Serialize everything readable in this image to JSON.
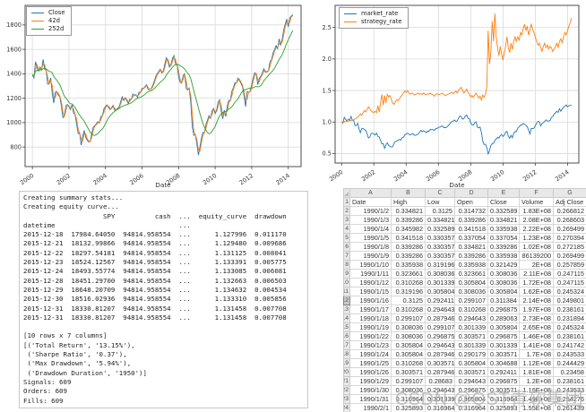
{
  "watermark": "CSDN @QST青软集团",
  "chart_data": [
    {
      "type": "line",
      "title": "",
      "xlabel": "Date",
      "ylabel": "",
      "x_start": 2000.0,
      "x_step_per_year": 12,
      "xlim": [
        1999.6,
        2014.7
      ],
      "ylim": [
        640,
        1960
      ],
      "xticks": [
        2000,
        2002,
        2004,
        2006,
        2008,
        2010,
        2012,
        2014
      ],
      "yticks": [
        800,
        1000,
        1200,
        1400,
        1600,
        1800
      ],
      "ytick_decimals": 0,
      "grid": true,
      "legend_position": "upper-left",
      "series": [
        {
          "name": "Close",
          "color": "#1f77b4",
          "values": [
            1394,
            1366,
            1499,
            1452,
            1421,
            1455,
            1431,
            1518,
            1437,
            1429,
            1315,
            1320,
            1366,
            1240,
            1160,
            1249,
            1256,
            1224,
            1211,
            1134,
            1041,
            1060,
            1139,
            1148,
            1130,
            1107,
            1147,
            1077,
            1067,
            990,
            911,
            916,
            815,
            886,
            936,
            880,
            856,
            841,
            848,
            917,
            964,
            975,
            990,
            1008,
            996,
            1051,
            1058,
            1112,
            1131,
            1145,
            1126,
            1107,
            1121,
            1141,
            1102,
            1104,
            1115,
            1130,
            1174,
            1212,
            1181,
            1204,
            1181,
            1157,
            1192,
            1191,
            1234,
            1220,
            1229,
            1207,
            1249,
            1248,
            1280,
            1281,
            1295,
            1311,
            1270,
            1270,
            1277,
            1304,
            1336,
            1378,
            1401,
            1418,
            1438,
            1407,
            1421,
            1482,
            1531,
            1503,
            1455,
            1474,
            1527,
            1549,
            1481,
            1468,
            1379,
            1331,
            1323,
            1386,
            1400,
            1280,
            1267,
            1283,
            1166,
            969,
            896,
            903,
            826,
            735,
            798,
            873,
            919,
            919,
            987,
            1021,
            1057,
            1036,
            1096,
            1115,
            1074,
            1104,
            1169,
            1187,
            1089,
            1031,
            1102,
            1049,
            1141,
            1183,
            1181,
            1258,
            1286,
            1327,
            1326,
            1364,
            1345,
            1321,
            1292,
            1219,
            1131,
            1253,
            1247,
            1258,
            1312,
            1366,
            1408,
            1398,
            1310,
            1362,
            1379,
            1407,
            1441,
            1412,
            1416,
            1426,
            1498,
            1515,
            1569,
            1598,
            1631,
            1606,
            1686,
            1633,
            1682,
            1757,
            1806,
            1848,
            1783,
            1859,
            1872,
            1884
          ]
        },
        {
          "name": "42d",
          "color": "#ff7f0e",
          "ma_of": 0,
          "window": 2
        },
        {
          "name": "252d",
          "color": "#2ca02c",
          "ma_of": 0,
          "window": 12
        }
      ]
    },
    {
      "type": "line",
      "title": "",
      "xlabel": "Date",
      "ylabel": "",
      "x_start": 2000.0,
      "x_step_per_year": 12,
      "xlim": [
        1999.6,
        2014.7
      ],
      "ylim": [
        0.35,
        2.85
      ],
      "xticks": [
        2000,
        2002,
        2004,
        2006,
        2008,
        2010,
        2012,
        2014
      ],
      "yticks": [
        0.5,
        1.0,
        1.5,
        2.0,
        2.5
      ],
      "ytick_decimals": 1,
      "grid": true,
      "legend_position": "upper-left",
      "series": [
        {
          "name": "market_rate",
          "color": "#1f77b4",
          "values": [
            1.0,
            0.98,
            1.075,
            1.042,
            1.019,
            1.044,
            1.027,
            1.089,
            1.031,
            1.025,
            0.943,
            0.947,
            0.98,
            0.889,
            0.832,
            0.896,
            0.901,
            0.878,
            0.869,
            0.813,
            0.747,
            0.76,
            0.817,
            0.823,
            0.811,
            0.794,
            0.823,
            0.773,
            0.765,
            0.71,
            0.654,
            0.657,
            0.585,
            0.636,
            0.671,
            0.631,
            0.614,
            0.603,
            0.608,
            0.658,
            0.691,
            0.699,
            0.71,
            0.723,
            0.714,
            0.754,
            0.759,
            0.798,
            0.811,
            0.821,
            0.808,
            0.794,
            0.804,
            0.818,
            0.79,
            0.792,
            0.8,
            0.81,
            0.842,
            0.869,
            0.847,
            0.864,
            0.847,
            0.83,
            0.855,
            0.854,
            0.885,
            0.875,
            0.881,
            0.866,
            0.896,
            0.895,
            0.918,
            0.919,
            0.929,
            0.94,
            0.911,
            0.911,
            0.916,
            0.935,
            0.958,
            0.988,
            1.005,
            1.017,
            1.032,
            1.009,
            1.019,
            1.063,
            1.098,
            1.078,
            1.044,
            1.057,
            1.095,
            1.111,
            1.062,
            1.053,
            0.989,
            0.955,
            0.949,
            0.994,
            1.004,
            0.918,
            0.909,
            0.92,
            0.836,
            0.695,
            0.643,
            0.648,
            0.593,
            0.495,
            0.545,
            0.626,
            0.659,
            0.659,
            0.708,
            0.732,
            0.758,
            0.743,
            0.786,
            0.8,
            0.77,
            0.792,
            0.839,
            0.851,
            0.781,
            0.74,
            0.79,
            0.752,
            0.818,
            0.849,
            0.847,
            0.902,
            0.922,
            0.952,
            0.951,
            0.978,
            0.965,
            0.948,
            0.927,
            0.874,
            0.811,
            0.899,
            0.894,
            0.902,
            0.941,
            0.98,
            1.01,
            1.003,
            0.94,
            0.977,
            0.989,
            1.009,
            1.034,
            1.013,
            1.016,
            1.023,
            1.074,
            1.087,
            1.125,
            1.146,
            1.17,
            1.152,
            1.209,
            1.171,
            1.206,
            1.23,
            1.25,
            1.27,
            1.24,
            1.26,
            1.262,
            1.27
          ]
        },
        {
          "name": "strategy_rate",
          "color": "#ff7f0e",
          "values": [
            1.0,
            0.99,
            1.01,
            1.0,
            1.02,
            1.01,
            1.03,
            1.02,
            1.04,
            1.03,
            1.05,
            1.06,
            1.08,
            1.1,
            1.13,
            1.11,
            1.15,
            1.18,
            1.16,
            1.2,
            1.24,
            1.21,
            1.18,
            1.16,
            1.15,
            1.17,
            1.15,
            1.26,
            1.16,
            1.3,
            1.44,
            1.27,
            1.42,
            1.3,
            1.44,
            1.4,
            1.42,
            1.36,
            1.3,
            1.28,
            1.32,
            1.35,
            1.34,
            1.37,
            1.4,
            1.43,
            1.46,
            1.49,
            1.47,
            1.5,
            1.46,
            1.44,
            1.46,
            1.45,
            1.43,
            1.44,
            1.45,
            1.46,
            1.44,
            1.45,
            1.44,
            1.46,
            1.44,
            1.43,
            1.45,
            1.44,
            1.46,
            1.44,
            1.43,
            1.41,
            1.44,
            1.45,
            1.43,
            1.44,
            1.45,
            1.46,
            1.44,
            1.42,
            1.43,
            1.44,
            1.45,
            1.46,
            1.47,
            1.45,
            1.47,
            1.49,
            1.46,
            1.5,
            1.53,
            1.55,
            1.5,
            1.46,
            1.49,
            1.52,
            1.47,
            1.44,
            1.4,
            1.42,
            1.39,
            1.43,
            1.46,
            1.42,
            1.38,
            1.41,
            1.35,
            1.43,
            1.39,
            1.44,
            1.55,
            2.45,
            1.92,
            2.1,
            2.6,
            2.28,
            2.72,
            2.35,
            2.18,
            2.05,
            2.2,
            2.08,
            1.98,
            2.1,
            2.2,
            2.35,
            2.18,
            2.1,
            2.25,
            2.15,
            2.28,
            2.35,
            2.28,
            2.35,
            2.3,
            2.42,
            2.38,
            2.48,
            2.55,
            2.45,
            2.52,
            2.38,
            2.46,
            2.55,
            2.48,
            2.42,
            2.35,
            2.28,
            2.22,
            2.25,
            2.18,
            2.12,
            2.2,
            2.25,
            2.18,
            2.22,
            2.16,
            2.2,
            2.18,
            2.12,
            2.15,
            2.2,
            2.25,
            2.18,
            2.28,
            2.32,
            2.26,
            2.35,
            2.42,
            2.38,
            2.45,
            2.52,
            2.58,
            2.65
          ]
        }
      ]
    }
  ],
  "console": {
    "lines": [
      "Creating summary stats...",
      "Creating equity curve...",
      "                    SPY          cash  ...  equity_curve  drawdown",
      "datetime                               ...",
      "2015-12-18  17984.64050  94814.958554  ...      1.127996  0.011170",
      "2015-12-21  18132.99866  94814.958554  ...      1.129480  0.009686",
      "2015-12-22  18297.54181  94814.958554  ...      1.131125  0.008041",
      "2015-12-23  18524.12567  94814.958554  ...      1.133391  0.005775",
      "2015-12-24  18493.55774  94814.958554  ...      1.133085  0.006081",
      "2015-12-28  18451.29700  94814.958554  ...      1.132663  0.006503",
      "2015-12-29  18648.20709  94814.958554  ...      1.134632  0.004534",
      "2015-12-30  18516.02936  94814.958554  ...      1.133310  0.005856",
      "2015-12-31  18330.81207  94814.958554  ...      1.131458  0.007708",
      "2015-12-31  18330.81207  94814.958554  ...      1.131458  0.007708",
      "",
      "[10 rows x 7 columns]",
      "[('Total Return', '13.15%'),",
      " ('Sharpe Ratio', '0.37'),",
      " ('Max Drawdown', '5.94%'),",
      " ('Drawdown Duration', '1950')]",
      "Signals: 609",
      "Orders: 609",
      "Fills: 609"
    ]
  },
  "spreadsheet": {
    "column_letters": [
      "A",
      "B",
      "C",
      "D",
      "E",
      "F",
      "G"
    ],
    "fields": [
      "Date",
      "High",
      "Low",
      "Open",
      "Close",
      "Volume",
      "Adj Close"
    ],
    "selected_row": 12,
    "rows": [
      [
        "1990/1/2",
        "0.334821",
        "0.3125",
        "0.314732",
        "0.332589",
        "1.83E+08",
        "0.266812"
      ],
      [
        "1990/1/3",
        "0.339286",
        "0.334821",
        "0.339286",
        "0.334821",
        "2.08E+08",
        "0.268603"
      ],
      [
        "1990/1/4",
        "0.345982",
        "0.332589",
        "0.341518",
        "0.335938",
        "2.22E+08",
        "0.269499"
      ],
      [
        "1990/1/5",
        "0.341518",
        "0.330357",
        "0.337054",
        "0.337054",
        "1.23E+08",
        "0.270394"
      ],
      [
        "1990/1/8",
        "0.339286",
        "0.330357",
        "0.334821",
        "0.339286",
        "1.02E+08",
        "0.272185"
      ],
      [
        "1990/1/9",
        "0.339286",
        "0.330357",
        "0.339286",
        "0.335938",
        "86139200",
        "0.269499"
      ],
      [
        "1990/1/10",
        "0.335938",
        "0.319196",
        "0.335938",
        "0.321429",
        "2E+08",
        "0.257859"
      ],
      [
        "1990/1/11",
        "0.323661",
        "0.308036",
        "0.323661",
        "0.308036",
        "2.11E+08",
        "0.247115"
      ],
      [
        "1990/1/12",
        "0.310268",
        "0.301339",
        "0.305804",
        "0.308036",
        "1.72E+08",
        "0.247115"
      ],
      [
        "1990/1/15",
        "0.319196",
        "0.305804",
        "0.308036",
        "0.305804",
        "1.62E+08",
        "0.245324"
      ],
      [
        "1990/1/16",
        "0.3125",
        "0.292411",
        "0.299107",
        "0.311384",
        "2.14E+08",
        "0.249801"
      ],
      [
        "1990/1/17",
        "0.310268",
        "0.294643",
        "0.310268",
        "0.296875",
        "1.97E+08",
        "0.238161"
      ],
      [
        "1990/1/18",
        "0.299107",
        "0.287946",
        "0.294643",
        "0.289063",
        "2.73E+08",
        "0.231894"
      ],
      [
        "1990/1/19",
        "0.308036",
        "0.299107",
        "0.301339",
        "0.305804",
        "2.65E+08",
        "0.245324"
      ],
      [
        "1990/1/22",
        "0.308036",
        "0.296875",
        "0.303571",
        "0.296875",
        "1.46E+08",
        "0.238161"
      ],
      [
        "1990/1/23",
        "0.305804",
        "0.294643",
        "0.301339",
        "0.301339",
        "1.41E+08",
        "0.241742"
      ],
      [
        "1990/1/24",
        "0.305804",
        "0.287946",
        "0.290179",
        "0.303571",
        "1.7E+08",
        "0.243533"
      ],
      [
        "1990/1/25",
        "0.310268",
        "0.303571",
        "0.305804",
        "0.304688",
        "1.12E+08",
        "0.244429"
      ],
      [
        "1990/1/26",
        "0.303571",
        "0.287946",
        "0.303571",
        "0.292411",
        "1.81E+08",
        "0.23458"
      ],
      [
        "1990/1/29",
        "0.299107",
        "0.28683",
        "0.294643",
        "0.296875",
        "1.2E+08",
        "0.238161"
      ],
      [
        "1990/1/30",
        "0.308036",
        "0.294643",
        "0.296875",
        "0.303571",
        "1.16E+08",
        "0.243533"
      ],
      [
        "1990/1/31",
        "0.316964",
        "0.301339",
        "0.305804",
        "0.316964",
        "1.49E+08",
        "0.254276"
      ],
      [
        "1990/2/1",
        "0.325893",
        "0.316964",
        "0.316964",
        "0.325893",
        "1.55E+08",
        "0.261439"
      ]
    ]
  }
}
